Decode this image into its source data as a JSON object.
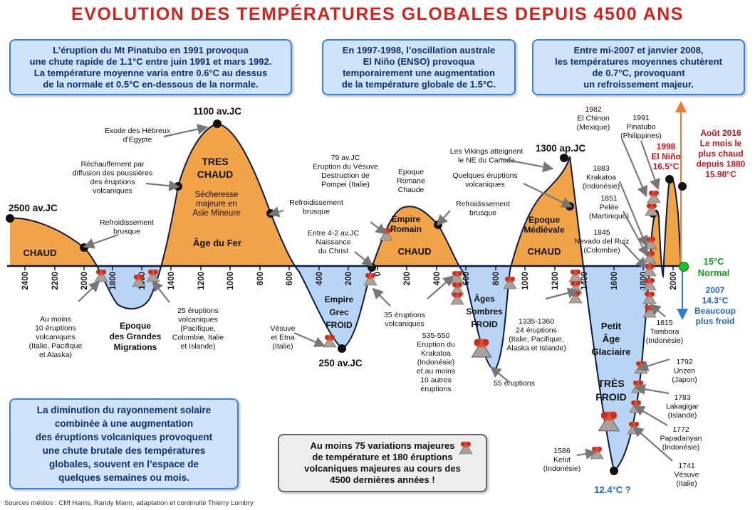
{
  "title": "EVOLUTION DES TEMPÉRATURES GLOBALES DEPUIS 4500 ANS",
  "info_boxes": {
    "pinatubo": [
      "L’éruption du Mt Pinatubo en 1991 provoqua",
      "une chute rapide de 1.1°C entre juin 1991 et mars 1992.",
      "La température moyenne varia entre 0.6°C au dessus",
      "de la normale et 0.5°C en-dessous de la normale."
    ],
    "enso": [
      "En 1997-1998, l’oscillation australe",
      "El Niño (ENSO) provoqua",
      "temporairement une augmentation",
      "de la température globale de 1.5°C."
    ],
    "cooling_2007": [
      "Entre mi-2007 et janvier 2008,",
      "les températures moyennes chutèrent",
      "de 0.7°C, provoquant",
      "un refroissement majeur."
    ],
    "solar": [
      "La diminution du rayonnement solaire",
      "combinée à une augmentation",
      "des éruptions volcaniques provoquent",
      "une chute brutale des températures",
      "globales, souvent en l’espace de",
      "quelques semaines ou mois."
    ],
    "variations": [
      "Au moins 75 variations majeures",
      "de température et 180 éruptions",
      "volcaniques majeures au cours des",
      "4500 dernières années !"
    ]
  },
  "source": "Sources météos : Cliff Harris, Randy Mann, adaptation et continuité Thierry Lombry",
  "chart_data": {
    "type": "area",
    "x_axis": {
      "ticks": [
        "2400",
        "2200",
        "2000",
        "1800",
        "1600",
        "1400",
        "1200",
        "1000",
        "800",
        "600",
        "400",
        "200",
        "0",
        "200",
        "400",
        "600",
        "800",
        "1000",
        "1200",
        "1400",
        "1600",
        "1800",
        "2000"
      ]
    },
    "baseline": {
      "label_value": "15°C",
      "label_text": "Normal"
    },
    "colors": {
      "warm": "#f0a347",
      "cold": "#b9d5f6",
      "title": "#d4231c",
      "box_text": "#0d2f72",
      "blue_note": "#1f64c8",
      "red_note": "#c8151b",
      "normal": "#14a01e"
    },
    "periods": [
      {
        "name": [
          "CHAUD"
        ],
        "kind": "warm"
      },
      {
        "name": [
          "Epoque",
          "des Grandes",
          "Migrations"
        ],
        "kind": "cold"
      },
      {
        "name": [
          "TRES",
          "CHAUD"
        ],
        "kind": "warm"
      },
      {
        "name": [
          "Sécheresse",
          "majeure en",
          "Asie Mineure"
        ],
        "kind": "warm"
      },
      {
        "name": [
          "Âge du Fer"
        ],
        "kind": "warm"
      },
      {
        "name": [
          "Empire",
          "Grec",
          "FROID"
        ],
        "kind": "cold"
      },
      {
        "name": [
          "Empire",
          "Romain"
        ],
        "kind": "warm"
      },
      {
        "name": [
          "CHAUD"
        ],
        "kind": "warm"
      },
      {
        "name": [
          "Âges",
          "Sombres",
          "FROID"
        ],
        "kind": "cold"
      },
      {
        "name": [
          "Epoque",
          "Médiévale"
        ],
        "kind": "warm"
      },
      {
        "name": [
          "CHAUD"
        ],
        "kind": "warm"
      },
      {
        "name": [
          "Petit",
          "Âge",
          "Glaciaire"
        ],
        "kind": "cold"
      },
      {
        "name": [
          "TRÈS",
          "FROID"
        ],
        "kind": "cold"
      }
    ],
    "annotations": [
      {
        "lines": [
          "2500 av.JC"
        ],
        "style": "big"
      },
      {
        "lines": [
          "1100 av.JC"
        ],
        "style": "big"
      },
      {
        "lines": [
          "250 av.JC"
        ],
        "style": "big"
      },
      {
        "lines": [
          "1300 ap.JC"
        ],
        "style": "big"
      },
      {
        "lines": [
          "Refroidissement",
          "brusque"
        ]
      },
      {
        "lines": [
          "Exode des Hébreux",
          "d’Egypte"
        ]
      },
      {
        "lines": [
          "Réchauffement par",
          "diffusion des poussières",
          "des éruptions",
          "volcaniques"
        ]
      },
      {
        "lines": [
          "Refroidissement",
          "brusque"
        ]
      },
      {
        "lines": [
          "79 av.JC",
          "Eruption du Vésuve",
          "Destruction de",
          "Pompei (Italie)"
        ]
      },
      {
        "lines": [
          "Epoque",
          "Romane",
          "Chaude"
        ]
      },
      {
        "lines": [
          "Les Vikings atteignent",
          "le NE du Canada"
        ]
      },
      {
        "lines": [
          "Quelques éruptions",
          "volcaniques"
        ]
      },
      {
        "lines": [
          "Refroidissement",
          "brusque"
        ]
      },
      {
        "lines": [
          "Entre 4-2 av.JC",
          "Naissance",
          "du Christ"
        ]
      },
      {
        "lines": [
          "Au moins",
          "10 éruptions",
          "volcaniques",
          "(Italie, Pacifique",
          "et Alaska)"
        ]
      },
      {
        "lines": [
          "25 éruptions",
          "volcaniques",
          "(Pacifique,",
          "Colombie, Italie",
          "et Islande)"
        ]
      },
      {
        "lines": [
          "Vésuve",
          "et Etna",
          "(Italie)"
        ]
      },
      {
        "lines": [
          "35 éruptions",
          "volcaniques"
        ]
      },
      {
        "lines": [
          "535-550",
          "Eruption du",
          "Krakatoa",
          "(Indonésie)",
          "et au moins",
          "10 autres",
          "éruptions"
        ]
      },
      {
        "lines": [
          "55 éruptions"
        ]
      },
      {
        "lines": [
          "1335-1360",
          "24 éruptions",
          "(Italie, Pacifique,",
          "Alaska et Islande)"
        ]
      },
      {
        "lines": [
          "1982",
          "El Chinon",
          "(Mexique)"
        ]
      },
      {
        "lines": [
          "1991",
          "Pinatubo",
          "(Philippines)"
        ]
      },
      {
        "lines": [
          "1883",
          "Krakatoa",
          "(Indonésie)"
        ]
      },
      {
        "lines": [
          "1851",
          "Pelée",
          "(Martinique)"
        ]
      },
      {
        "lines": [
          "1845",
          "Nevado del Ruiz",
          "(Colombie)"
        ]
      },
      {
        "lines": [
          "1815",
          "Tambora",
          "(Indonésie)"
        ]
      },
      {
        "lines": [
          "1792",
          "Unzen",
          "(Japon)"
        ]
      },
      {
        "lines": [
          "1783",
          "Lakagigar",
          "(Islande)"
        ]
      },
      {
        "lines": [
          "1772",
          "Papadanyan",
          "(Indonésie)"
        ]
      },
      {
        "lines": [
          "1741",
          "Vésuve",
          "(Italie)"
        ]
      },
      {
        "lines": [
          "1586",
          "Kelut",
          "(Indonésie)"
        ]
      },
      {
        "lines": [
          "1998",
          "El Niño",
          "16.5°C"
        ],
        "style": "red"
      },
      {
        "lines": [
          "Août 2016",
          "Le mois le",
          "plus chaud",
          "depuis 1880",
          "15.98°C"
        ],
        "style": "red"
      },
      {
        "lines": [
          "15°C",
          "Normal"
        ],
        "style": "green"
      },
      {
        "lines": [
          "2007",
          "14.3°C",
          "Beaucoup",
          "plus froid"
        ],
        "style": "blue"
      },
      {
        "lines": [
          "12.4°C ?"
        ],
        "style": "blue"
      }
    ]
  }
}
